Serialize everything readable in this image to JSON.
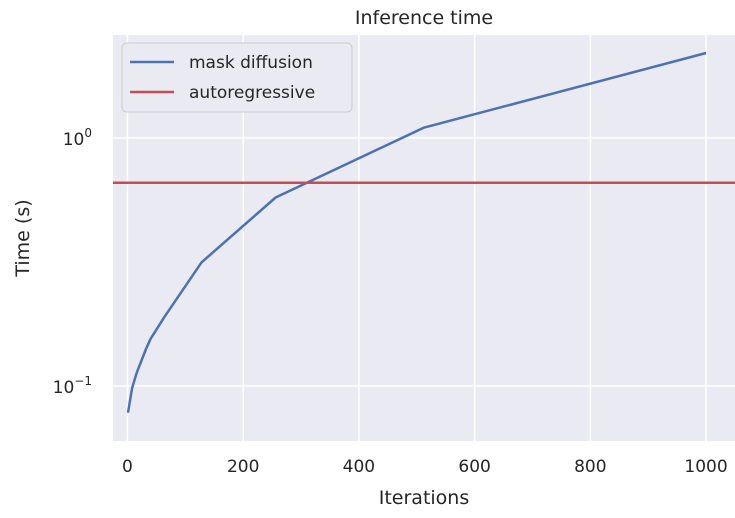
{
  "chart_data": {
    "type": "line",
    "title": "Inference time",
    "xlabel": "Iterations",
    "ylabel": "Time (s)",
    "xlim": [
      -25,
      1050
    ],
    "ylim": [
      0.06,
      2.6
    ],
    "yscale": "log",
    "grid": true,
    "legend": "upper-left",
    "x_ticks": [
      0,
      200,
      400,
      600,
      800,
      1000
    ],
    "x_tick_labels": [
      "0",
      "200",
      "400",
      "600",
      "800",
      "1000"
    ],
    "y_ticks": [
      0.1,
      1
    ],
    "y_tick_labels": [
      {
        "base": "10",
        "exp": "−1"
      },
      {
        "base": "10",
        "exp": "0"
      }
    ],
    "series": [
      {
        "name": "mask diffusion",
        "color": "#4c72b0",
        "x": [
          1,
          8,
          16,
          32,
          40,
          64,
          128,
          256,
          512,
          1000
        ],
        "y": [
          0.078,
          0.098,
          0.113,
          0.141,
          0.155,
          0.19,
          0.315,
          0.575,
          1.1,
          2.2
        ]
      },
      {
        "name": "autoregressive",
        "color": "#c44e52",
        "x": [
          -25,
          1050
        ],
        "y": [
          0.66,
          0.66
        ]
      }
    ]
  }
}
